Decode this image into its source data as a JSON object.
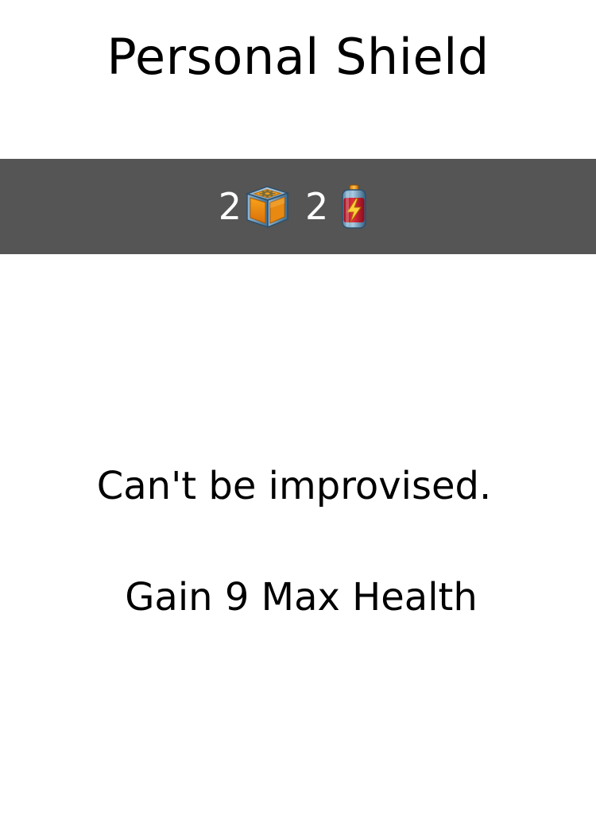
{
  "card": {
    "title": "Personal Shield",
    "cost_bar_color": "#555555",
    "costs": [
      {
        "amount": "2",
        "icon": "parts-crate-icon"
      },
      {
        "amount": "2",
        "icon": "battery-icon"
      }
    ],
    "note": "Can't be improvised.",
    "effect": "Gain 9 Max Health"
  }
}
